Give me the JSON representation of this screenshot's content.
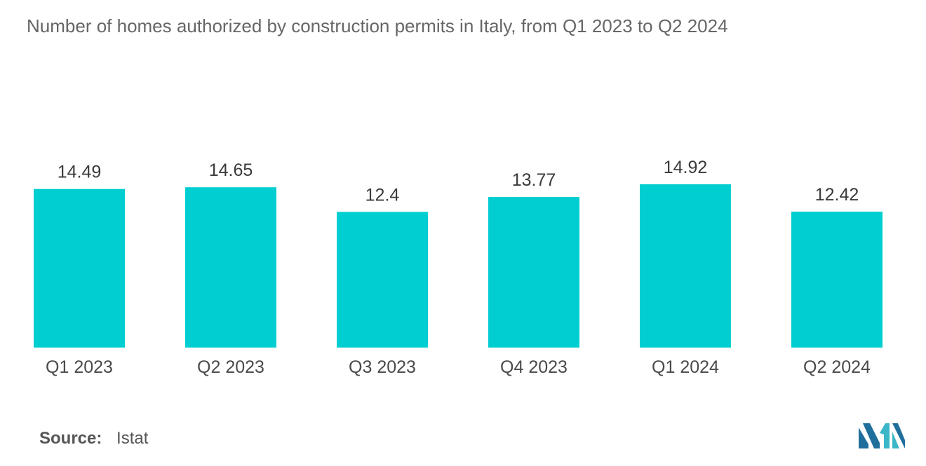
{
  "chart_data": {
    "type": "bar",
    "title": "Number of homes authorized by construction permits in Italy, from Q1 2023 to Q2 2024",
    "categories": [
      "Q1 2023",
      "Q2 2023",
      "Q3 2023",
      "Q4 2023",
      "Q1 2024",
      "Q2 2024"
    ],
    "values": [
      14.49,
      14.65,
      12.4,
      13.77,
      14.92,
      12.42
    ],
    "value_labels": [
      "14.49",
      "14.65",
      "12.4",
      "13.77",
      "14.92",
      "12.42"
    ],
    "xlabel": "",
    "ylabel": "",
    "ylim": [
      0,
      14.92
    ],
    "grid": false,
    "legend": "none",
    "bar_color": "#00CED1"
  },
  "source": {
    "label": "Source:",
    "value": "Istat"
  },
  "logo": {
    "icon": "mordor-intelligence-logo-icon",
    "colors": [
      "#1F6E9C",
      "#3BB7C8"
    ]
  }
}
